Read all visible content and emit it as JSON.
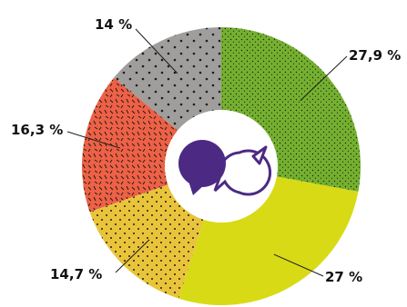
{
  "chart_data": {
    "type": "pie",
    "style": "donut",
    "title": "",
    "slices": [
      {
        "label": "27,9 %",
        "value": 27.9,
        "color": "#74b02f",
        "pattern": "fine-dots"
      },
      {
        "label": "27 %",
        "value": 27.0,
        "color": "#d8da15",
        "pattern": "none"
      },
      {
        "label": "14,7 %",
        "value": 14.7,
        "color": "#e9c43a",
        "pattern": "dots"
      },
      {
        "label": "16,3 %",
        "value": 16.3,
        "color": "#ee6146",
        "pattern": "dashes"
      },
      {
        "label": "14 %",
        "value": 14.0,
        "color": "#a09e9c",
        "pattern": "large-dots"
      }
    ],
    "center_icon": "chat-bubbles-icon",
    "center_icon_color": "#4c2a83",
    "legend": "none"
  }
}
